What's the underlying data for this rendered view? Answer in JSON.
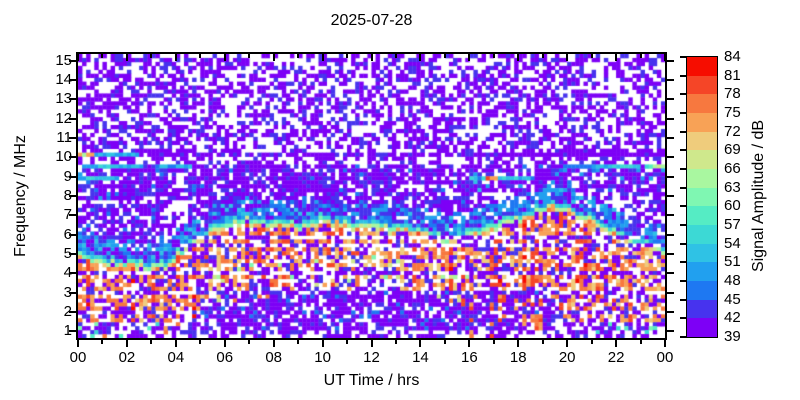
{
  "chart_data": {
    "type": "heatmap",
    "title": "2025-07-28",
    "xlabel": "UT Time / hrs",
    "ylabel": "Frequency / MHz",
    "x_range": [
      0,
      24
    ],
    "y_range": [
      0.65,
      15.35
    ],
    "x_major_ticks": [
      {
        "t": 0,
        "label": "00"
      },
      {
        "t": 2,
        "label": "02"
      },
      {
        "t": 4,
        "label": "04"
      },
      {
        "t": 6,
        "label": "06"
      },
      {
        "t": 8,
        "label": "08"
      },
      {
        "t": 10,
        "label": "10"
      },
      {
        "t": 12,
        "label": "12"
      },
      {
        "t": 14,
        "label": "14"
      },
      {
        "t": 16,
        "label": "16"
      },
      {
        "t": 18,
        "label": "18"
      },
      {
        "t": 20,
        "label": "20"
      },
      {
        "t": 22,
        "label": "22"
      },
      {
        "t": 24,
        "label": "00"
      }
    ],
    "x_minor_ticks": [
      1,
      3,
      5,
      7,
      9,
      11,
      13,
      15,
      17,
      19,
      21,
      23
    ],
    "y_ticks": [
      {
        "f": 1,
        "label": "1"
      },
      {
        "f": 2,
        "label": "2"
      },
      {
        "f": 3,
        "label": "3"
      },
      {
        "f": 4,
        "label": "4"
      },
      {
        "f": 5,
        "label": "5"
      },
      {
        "f": 6,
        "label": "6"
      },
      {
        "f": 7,
        "label": "7"
      },
      {
        "f": 8,
        "label": "8"
      },
      {
        "f": 9,
        "label": "9"
      },
      {
        "f": 10,
        "label": "10"
      },
      {
        "f": 11,
        "label": "11"
      },
      {
        "f": 12,
        "label": "12"
      },
      {
        "f": 13,
        "label": "13"
      },
      {
        "f": 14,
        "label": "14"
      },
      {
        "f": 15,
        "label": "15"
      }
    ],
    "colorbar": {
      "label": "Signal Amplitude / dB",
      "min": 39,
      "max": 84,
      "step": 3,
      "tick_labels": [
        "84",
        "81",
        "78",
        "75",
        "72",
        "69",
        "66",
        "63",
        "60",
        "57",
        "54",
        "51",
        "48",
        "45",
        "42",
        "39"
      ],
      "colors_low_to_high": [
        "#7d00f6",
        "#4733ee",
        "#1e78f2",
        "#21a0ef",
        "#2fc2e5",
        "#3cd9d5",
        "#55ecc4",
        "#7ff7b2",
        "#a9f7a0",
        "#cfe88c",
        "#efcc7c",
        "#f8a256",
        "#f7783f",
        "#f54527",
        "#f60d00"
      ]
    },
    "grid": {
      "cols": 144,
      "rows": 72
    },
    "day_window": [
      5.5,
      16.2
    ],
    "fof2_envelope": {
      "t": [
        0,
        1,
        2,
        3,
        3.6,
        4.2,
        5,
        5.6,
        6.3,
        7,
        7.6,
        8.2,
        9,
        9.6,
        10,
        10.6,
        11.2,
        12,
        12.8,
        13.6,
        14.3,
        15.2,
        16,
        17,
        18,
        18.8,
        19.4,
        20,
        20.7,
        21.3,
        22,
        22.7,
        23.4,
        24
      ],
      "f": [
        5.4,
        5.25,
        5.0,
        4.9,
        5.0,
        5.6,
        6.4,
        6.8,
        7.1,
        7.3,
        7.1,
        7.2,
        6.95,
        7.1,
        7.35,
        7.15,
        6.95,
        7.0,
        6.85,
        6.85,
        6.7,
        6.25,
        6.6,
        7.0,
        7.35,
        7.7,
        8.0,
        7.8,
        7.45,
        7.15,
        6.6,
        6.2,
        5.9,
        5.6
      ]
    },
    "fmin_envelope": {
      "t": [
        0,
        3.2,
        3.8,
        4.4,
        5,
        5.6,
        6.4,
        7.2,
        8,
        9,
        10,
        11,
        12,
        13,
        14,
        15,
        15.9,
        16.05,
        17,
        18,
        19.3,
        19.5,
        20,
        20.6,
        24
      ],
      "f": [
        0.75,
        0.8,
        1.15,
        1.65,
        2.0,
        2.25,
        2.6,
        2.9,
        3.05,
        3.2,
        3.3,
        3.4,
        3.5,
        3.35,
        3.05,
        2.75,
        2.4,
        3.2,
        3.25,
        3.3,
        3.3,
        2.5,
        1.6,
        0.9,
        0.75
      ]
    },
    "gap_lines_mhz": [
      5.95,
      5.5,
      3.95,
      2.9,
      2.05
    ],
    "evening_gap": {
      "t0": 15.95,
      "t1": 19.35,
      "f_top": 3.3,
      "col_p": 0.25
    },
    "interference_rows": [
      {
        "f": 10.05,
        "segments": [
          {
            "t0": 0,
            "t1": 0.75,
            "p": 0.95,
            "amps": [
              70,
              84
            ]
          },
          {
            "t0": 0.8,
            "t1": 2.5,
            "p": 0.6,
            "amps": [
              51,
              57
            ]
          },
          {
            "t0": 2.5,
            "t1": 8.3,
            "p": 0.28,
            "amps": [
              40,
              50
            ]
          },
          {
            "t0": 8.3,
            "t1": 17.6,
            "p": 0.04,
            "amps": [
              40,
              48
            ]
          },
          {
            "t0": 17.6,
            "t1": 24,
            "p": 0.6,
            "amps": [
              39,
              47
            ]
          }
        ]
      },
      {
        "f": 10.28,
        "segments": [
          {
            "t0": 2.7,
            "t1": 3.5,
            "p": 0.5,
            "amps": [
              39,
              44
            ]
          },
          {
            "t0": 18.2,
            "t1": 24,
            "p": 0.18,
            "amps": [
              39,
              45
            ]
          }
        ]
      },
      {
        "f": 9.45,
        "segments": [
          {
            "t0": 0.2,
            "t1": 2.6,
            "p": 0.55,
            "amps": [
              52,
              58
            ]
          },
          {
            "t0": 3,
            "t1": 4.8,
            "p": 0.3,
            "amps": [
              50,
              56
            ]
          },
          {
            "t0": 18,
            "t1": 21,
            "p": 0.12,
            "amps": [
              45,
              52
            ]
          },
          {
            "t0": 21,
            "t1": 23.4,
            "p": 0.35,
            "amps": [
              54,
              63
            ]
          },
          {
            "t0": 23.4,
            "t1": 24,
            "p": 0.8,
            "amps": [
              66,
              80
            ]
          }
        ]
      },
      {
        "f": 8.85,
        "segments": [
          {
            "t0": 0,
            "t1": 1.6,
            "p": 0.6,
            "amps": [
              52,
              58
            ]
          },
          {
            "t0": 16.3,
            "t1": 18.4,
            "p": 0.5,
            "amps": [
              54,
              64
            ]
          },
          {
            "t0": 16.8,
            "t1": 17.05,
            "p": 0.9,
            "amps": [
              76,
              84
            ]
          }
        ]
      }
    ],
    "noise_clusters": [
      {
        "t0": 16.0,
        "t1": 16.5,
        "f0": 8.2,
        "f1": 9.15,
        "p": 0.4,
        "amps": [
          45,
          70
        ]
      }
    ],
    "speckle_zones": [
      {
        "t0": 0,
        "t1": 24,
        "f0": 0.7,
        "f1": 15.3,
        "p": 0.002,
        "amps": [
          40,
          50
        ]
      },
      {
        "t0": 4.5,
        "t1": 16.5,
        "f0": 7.0,
        "f1": 9.6,
        "p": 0.02,
        "amps": [
          40,
          52
        ]
      },
      {
        "t0": 5,
        "t1": 16,
        "f0": 1.0,
        "f1": 3.2,
        "p": 0.02,
        "amps": [
          40,
          55
        ]
      },
      {
        "t0": 0,
        "t1": 5,
        "f0": 7.8,
        "f1": 9.7,
        "p": 0.03,
        "amps": [
          42,
          55
        ]
      },
      {
        "t0": 16.5,
        "t1": 24,
        "f0": 8.2,
        "f1": 9.7,
        "p": 0.03,
        "amps": [
          42,
          58
        ]
      },
      {
        "t0": 0,
        "t1": 3.5,
        "f0": 5.6,
        "f1": 7.5,
        "p": 0.02,
        "amps": [
          42,
          54
        ]
      },
      {
        "t0": 16,
        "t1": 19.5,
        "f0": 1.0,
        "f1": 3.2,
        "p": 0.012,
        "amps": [
          40,
          52
        ]
      }
    ]
  }
}
